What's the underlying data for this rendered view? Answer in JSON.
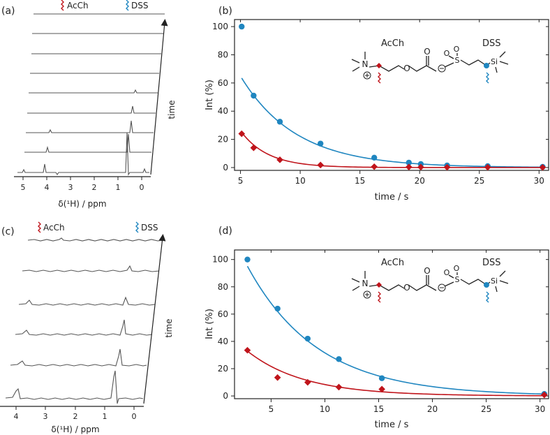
{
  "colors": {
    "acch": "#c0141b",
    "dss": "#1f86c0",
    "spectrum": "#555555",
    "axis": "#222222"
  },
  "panel_a": {
    "label": "(a)",
    "marker_acch": "AcCh",
    "marker_dss": "DSS",
    "xlabel": "δ(¹H) / ppm",
    "xticks": [
      "5",
      "4",
      "3",
      "2",
      "1",
      "0"
    ],
    "arrow_label": "time",
    "spectra_count": 9
  },
  "panel_c": {
    "label": "(c)",
    "marker_acch": "AcCh",
    "marker_dss": "DSS",
    "xlabel": "δ(¹H) / ppm",
    "xticks": [
      "4",
      "3",
      "2",
      "1",
      "0"
    ],
    "arrow_label": "time",
    "spectra_count": 6
  },
  "chart_data": [
    {
      "panel": "(b)",
      "type": "scatter",
      "xlabel": "time / s",
      "ylabel": "Int (%)",
      "xlim": [
        4.5,
        30.8
      ],
      "ylim": [
        -2,
        105
      ],
      "xticks": [
        5,
        10,
        15,
        20,
        25,
        30
      ],
      "yticks": [
        0,
        20,
        40,
        60,
        80,
        100
      ],
      "structure_labels": {
        "acch": "AcCh",
        "dss": "DSS"
      },
      "series": [
        {
          "name": "DSS",
          "color": "#1f86c0",
          "marker": "circle",
          "x": [
            5.1,
            6.1,
            8.3,
            11.7,
            16.2,
            19.1,
            20.1,
            22.3,
            25.7,
            30.3
          ],
          "y": [
            100,
            51,
            32.5,
            17,
            7,
            3.5,
            2.5,
            1.5,
            1,
            0.5
          ],
          "fit": {
            "a": 190,
            "k": 0.215,
            "x0": 5.1,
            "x1": 30.5
          }
        },
        {
          "name": "AcCh",
          "color": "#c0141b",
          "marker": "diamond",
          "x": [
            5.1,
            6.1,
            8.3,
            11.7,
            16.2,
            19.1,
            20.1,
            22.3,
            25.7,
            30.3
          ],
          "y": [
            24,
            14,
            5.5,
            1.8,
            0.6,
            0.4,
            0.3,
            0.2,
            0.2,
            0.1
          ],
          "fit": {
            "a": 235,
            "k": 0.44,
            "x0": 5.1,
            "x1": 30.5
          }
        }
      ]
    },
    {
      "panel": "(d)",
      "type": "scatter",
      "xlabel": "time / s",
      "ylabel": "Int (%)",
      "xlim": [
        1.6,
        30.8
      ],
      "ylim": [
        -2,
        107
      ],
      "xticks": [
        5,
        10,
        15,
        20,
        25,
        30
      ],
      "yticks": [
        0,
        20,
        40,
        60,
        80,
        100
      ],
      "structure_labels": {
        "acch": "AcCh",
        "dss": "DSS"
      },
      "series": [
        {
          "name": "DSS",
          "color": "#1f86c0",
          "marker": "circle",
          "x": [
            2.8,
            5.6,
            8.4,
            11.3,
            15.3,
            30.4
          ],
          "y": [
            100,
            64,
            42,
            27,
            13,
            1.5
          ],
          "fit": {
            "a": 146,
            "k": 0.153,
            "x0": 2.8,
            "x1": 30.5
          }
        },
        {
          "name": "AcCh",
          "color": "#c0141b",
          "marker": "diamond",
          "x": [
            2.8,
            5.6,
            8.4,
            11.3,
            15.3,
            30.4
          ],
          "y": [
            33.5,
            13.5,
            10,
            6.5,
            5,
            0.8
          ],
          "fit": {
            "a": 56,
            "k": 0.19,
            "x0": 2.8,
            "x1": 30.5
          }
        }
      ]
    }
  ]
}
